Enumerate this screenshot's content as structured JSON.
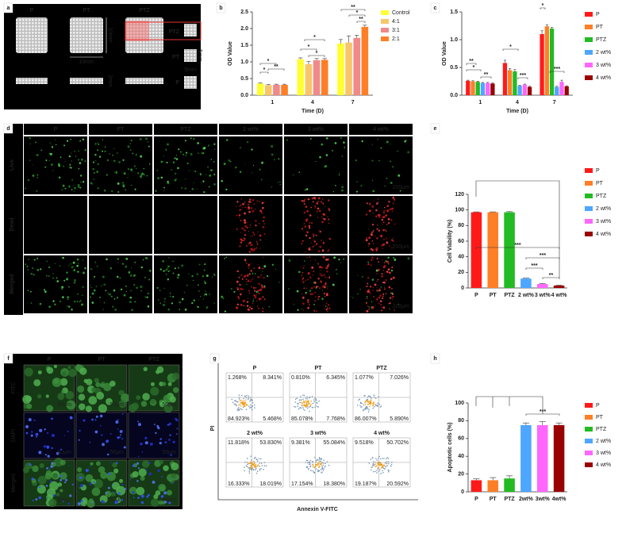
{
  "panel_labels": [
    "a",
    "b",
    "c",
    "d",
    "e",
    "f",
    "g",
    "h"
  ],
  "panel_a": {
    "top_labels": [
      "P",
      "PT",
      "PTZ"
    ],
    "side_labels": [
      "PTZ",
      "PT",
      "P"
    ],
    "dimensions": [
      "10mm",
      "10mm",
      "2mm",
      "5mm",
      "5mm"
    ]
  },
  "panel_d": {
    "columns": [
      "P",
      "PT",
      "PTZ",
      "2 wt%",
      "3 wt%",
      "4 wt%"
    ],
    "rows": [
      "Live",
      "Dead",
      "Merged"
    ],
    "scale_bar": "200μm"
  },
  "panel_f": {
    "columns": [
      "P",
      "PT",
      "PTZ"
    ],
    "rows": [
      "FITC",
      "DAPI",
      "Merged"
    ],
    "scale_bar": "50μm"
  },
  "panel_g": {
    "y_label": "PI",
    "x_label": "Annexin V-FITC",
    "plots": [
      {
        "title": "P",
        "quadrants": [
          "1.268%",
          "8.341%",
          "84.923%",
          "5.468%"
        ]
      },
      {
        "title": "PT",
        "quadrants": [
          "0.810%",
          "6.345%",
          "85.078%",
          "7.768%"
        ]
      },
      {
        "title": "PTZ",
        "quadrants": [
          "1.077%",
          "7.026%",
          "86.007%",
          "5.890%"
        ]
      },
      {
        "title": "2 wt%",
        "quadrants": [
          "11.818%",
          "53.830%",
          "16.333%",
          "18.019%"
        ]
      },
      {
        "title": "3 wt%",
        "quadrants": [
          "9.381%",
          "55.084%",
          "17.154%",
          "18.380%"
        ]
      },
      {
        "title": "4 wt%",
        "quadrants": [
          "9.518%",
          "50.702%",
          "19.187%",
          "20.592%"
        ]
      }
    ]
  },
  "chart_data": [
    {
      "type": "bar",
      "x_label": "Time (D)",
      "y_label": "OD Value",
      "categories": [
        "1",
        "4",
        "7"
      ],
      "series": [
        {
          "name": "Control",
          "color": "#ffff33",
          "values": [
            0.35,
            1.08,
            1.55
          ],
          "errors": [
            0.02,
            0.04,
            0.12
          ]
        },
        {
          "name": "4:1",
          "color": "#f7c66b",
          "values": [
            0.3,
            0.93,
            1.58
          ],
          "errors": [
            0.02,
            0.08,
            0.2
          ]
        },
        {
          "name": "3:1",
          "color": "#f08a8a",
          "values": [
            0.31,
            1.05,
            1.72
          ],
          "errors": [
            0.02,
            0.05,
            0.08
          ]
        },
        {
          "name": "2:1",
          "color": "#ff7f27",
          "values": [
            0.31,
            1.06,
            2.05
          ],
          "errors": [
            0.02,
            0.04,
            0.05
          ]
        }
      ],
      "ylim": [
        0,
        2.5
      ],
      "yticks": [
        {
          "value": 0,
          "label": "0.0"
        },
        0.5,
        {
          "value": 1,
          "label": "1.0"
        },
        1.5,
        {
          "value": 2,
          "label": "2.0"
        },
        2.5
      ],
      "annotations": [
        "*",
        "*",
        "**",
        "*",
        "*",
        "*",
        "**",
        "*",
        "**"
      ]
    },
    {
      "type": "bar",
      "x_label": "Time (D)",
      "y_label": "OD Value",
      "categories": [
        "1",
        "4",
        "7"
      ],
      "series": [
        {
          "name": "P",
          "color": "#ff1a1a",
          "values": [
            0.26,
            0.58,
            1.1
          ],
          "errors": [
            0.01,
            0.05,
            0.06
          ]
        },
        {
          "name": "PT",
          "color": "#ff7f27",
          "values": [
            0.25,
            0.45,
            1.24
          ],
          "errors": [
            0.01,
            0.03,
            0.03
          ]
        },
        {
          "name": "PTZ",
          "color": "#22bb22",
          "values": [
            0.24,
            0.43,
            1.2
          ],
          "errors": [
            0.01,
            0.03,
            0.02
          ]
        },
        {
          "name": "2 wt%",
          "color": "#4da6ff",
          "values": [
            0.22,
            0.17,
            0.15
          ],
          "errors": [
            0.01,
            0.01,
            0.01
          ]
        },
        {
          "name": "3 wt%",
          "color": "#ff66ff",
          "values": [
            0.22,
            0.19,
            0.24
          ],
          "errors": [
            0.01,
            0.01,
            0.03
          ]
        },
        {
          "name": "4 wt%",
          "color": "#990000",
          "values": [
            0.21,
            0.15,
            0.16
          ],
          "errors": [
            0.01,
            0.01,
            0.01
          ]
        }
      ],
      "ylim": [
        0,
        1.5
      ],
      "yticks": [
        {
          "value": 0,
          "label": "0.0"
        },
        0.5,
        {
          "value": 1,
          "label": "1.0"
        },
        1.5
      ],
      "annotations": [
        "**",
        "*",
        "**",
        "*",
        "***",
        "*",
        "***"
      ]
    },
    {
      "type": "bar",
      "y_label": "Cell Viability (%)",
      "categories": [
        "P",
        "PT",
        "PTZ",
        "2 wt%",
        "3 wt%",
        "4 wt%"
      ],
      "values": [
        97,
        97,
        97,
        12,
        5,
        3
      ],
      "errors": [
        0.5,
        0.5,
        0.8,
        0.5,
        0.8,
        0.5
      ],
      "colors": [
        "#ff1a1a",
        "#ff7f27",
        "#22bb22",
        "#4da6ff",
        "#ff66ff",
        "#990000"
      ],
      "legend": [
        "P",
        "PT",
        "PTZ",
        "2 wt%",
        "3 wt%",
        "4 wt%"
      ],
      "ylim": [
        0,
        120
      ],
      "yticks": [
        0,
        20,
        40,
        60,
        80,
        100,
        120
      ],
      "annotations": [
        "***",
        "***",
        "***",
        "**"
      ]
    },
    {
      "type": "bar",
      "y_label": "Apoptotic cells (%)",
      "categories": [
        "P",
        "PT",
        "PTZ",
        "2wt%",
        "3wt%",
        "4wt%"
      ],
      "values": [
        13,
        13,
        15,
        75,
        75,
        75
      ],
      "errors": [
        1.5,
        3,
        3,
        2.5,
        4,
        2.5
      ],
      "colors": [
        "#ff1a1a",
        "#ff7f27",
        "#22bb22",
        "#4da6ff",
        "#ff66ff",
        "#990000"
      ],
      "legend": [
        "P",
        "PT",
        "PTZ",
        "2 wt%",
        "3 wt%",
        "4 wt%"
      ],
      "ylim": [
        0,
        100
      ],
      "yticks": [
        0,
        20,
        40,
        60,
        80,
        100
      ],
      "annotations": [
        "***"
      ]
    }
  ]
}
